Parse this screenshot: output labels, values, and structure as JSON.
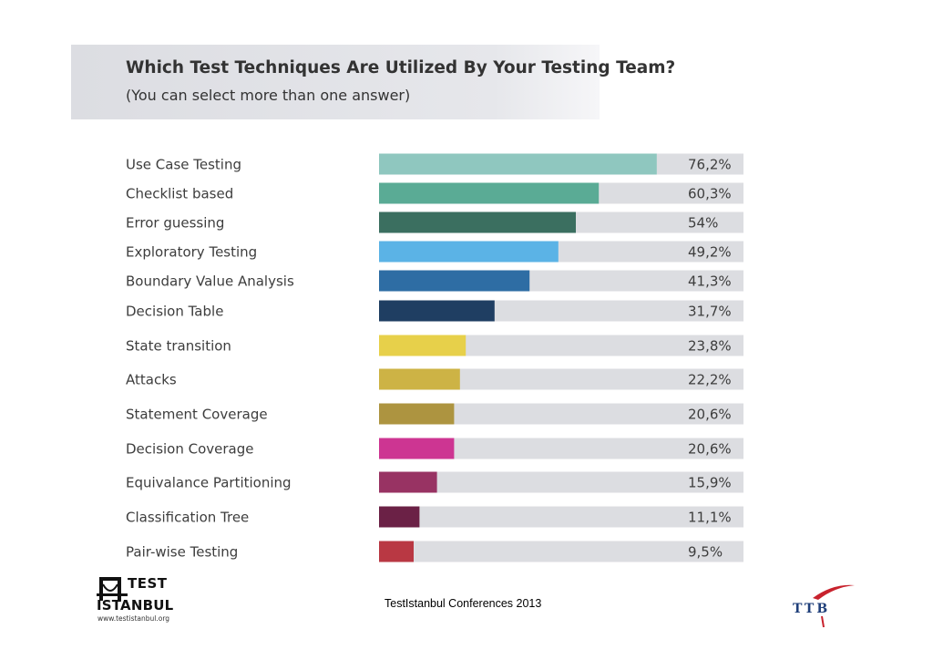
{
  "header": {
    "title": "Which Test Techniques Are Utilized By Your Testing Team?",
    "subtitle": "(You can select more than one answer)"
  },
  "chart_data": {
    "type": "bar",
    "orientation": "horizontal",
    "title": "Which Test Techniques Are Utilized By Your Testing Team?",
    "subtitle": "(You can select more than one answer)",
    "xlim": [
      0,
      100
    ],
    "unit": "%",
    "categories": [
      "Use Case Testing",
      "Checklist based",
      "Error guessing",
      "Exploratory Testing",
      "Boundary Value Analysis",
      "Decision Table",
      "State transition",
      "Attacks",
      "Statement Coverage",
      "Decision Coverage",
      "Equivalance Partitioning",
      "Classification Tree",
      "Pair-wise Testing"
    ],
    "values": [
      76.2,
      60.3,
      54,
      49.2,
      41.3,
      31.7,
      23.8,
      22.2,
      20.6,
      20.6,
      15.9,
      11.1,
      9.5
    ],
    "value_labels": [
      "76,2%",
      "60,3%",
      "54%",
      "49,2%",
      "41,3%",
      "31,7%",
      "23,8%",
      "22,2%",
      "20,6%",
      "20,6%",
      "15,9%",
      "11,1%",
      "9,5%"
    ],
    "colors": [
      "#8fc7bf",
      "#5aab95",
      "#3b6f60",
      "#5bb3e6",
      "#2e6da4",
      "#1f3e62",
      "#e7d04a",
      "#cdb345",
      "#ad9440",
      "#cd3592",
      "#983363",
      "#6b2146",
      "#b93843"
    ],
    "track_color": "#dcdde1"
  },
  "footer": {
    "text": "TestIstanbul Conferences 2013",
    "logo_left_top": "TEST",
    "logo_left_bottom": "ISTANBUL",
    "logo_left_url": "www.testistanbul.org",
    "logo_right": "TTB"
  }
}
